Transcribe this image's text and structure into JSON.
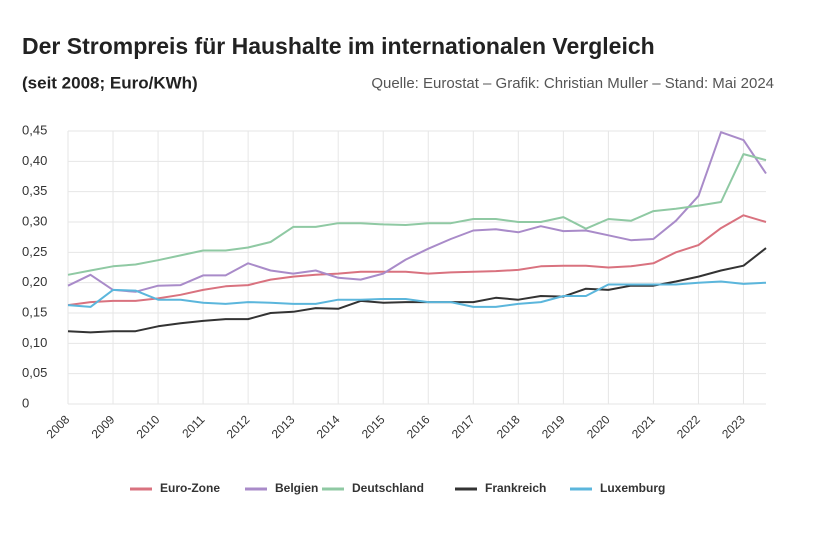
{
  "chart_data": {
    "type": "line",
    "title": "Der Strompreis für Haushalte im internationalen Vergleich",
    "subtitle": "(seit 2008; Euro/KWh)",
    "source": "Quelle: Eurostat – Grafik: Christian Muller – Stand: Mai 2024",
    "x": [
      2008,
      2008.5,
      2009,
      2009.5,
      2010,
      2010.5,
      2011,
      2011.5,
      2012,
      2012.5,
      2013,
      2013.5,
      2014,
      2014.5,
      2015,
      2015.5,
      2016,
      2016.5,
      2017,
      2017.5,
      2018,
      2018.5,
      2019,
      2019.5,
      2020,
      2020.5,
      2021,
      2021.5,
      2022,
      2022.5,
      2023,
      2023.5
    ],
    "xlim": [
      2008,
      2023.5
    ],
    "xticks": [
      2008,
      2009,
      2010,
      2011,
      2012,
      2013,
      2014,
      2015,
      2016,
      2017,
      2018,
      2019,
      2020,
      2021,
      2022,
      2023
    ],
    "ylim": [
      0,
      0.45
    ],
    "yticks": [
      0,
      {
        "value": 0.05,
        "label": "0,05"
      },
      {
        "value": 0.1,
        "label": "0,10"
      },
      {
        "value": 0.15,
        "label": "0,15"
      },
      {
        "value": 0.2,
        "label": "0,20"
      },
      {
        "value": 0.25,
        "label": "0,25"
      },
      {
        "value": 0.3,
        "label": "0,30"
      },
      {
        "value": 0.35,
        "label": "0,35"
      },
      {
        "value": 0.4,
        "label": "0,40"
      },
      {
        "value": 0.45,
        "label": "0,45"
      }
    ],
    "grid": true,
    "legend": "bottom",
    "series": [
      {
        "name": "Euro-Zone",
        "color": "#d9727f",
        "values": [
          0.163,
          0.168,
          0.17,
          0.17,
          0.174,
          0.18,
          0.188,
          0.194,
          0.196,
          0.205,
          0.21,
          0.213,
          0.215,
          0.218,
          0.218,
          0.218,
          0.215,
          0.217,
          0.218,
          0.219,
          0.221,
          0.227,
          0.228,
          0.228,
          0.225,
          0.227,
          0.232,
          0.25,
          0.262,
          0.29,
          0.311,
          0.3
        ]
      },
      {
        "name": "Belgien",
        "color": "#a98bc9",
        "values": [
          0.195,
          0.213,
          0.188,
          0.185,
          0.195,
          0.196,
          0.212,
          0.212,
          0.232,
          0.22,
          0.215,
          0.22,
          0.208,
          0.205,
          0.215,
          0.238,
          0.256,
          0.272,
          0.286,
          0.288,
          0.283,
          0.293,
          0.285,
          0.286,
          0.278,
          0.27,
          0.272,
          0.302,
          0.343,
          0.448,
          0.435,
          0.38
        ]
      },
      {
        "name": "Deutschland",
        "color": "#8fc9a3",
        "values": [
          0.213,
          0.22,
          0.227,
          0.23,
          0.237,
          0.245,
          0.253,
          0.253,
          0.258,
          0.267,
          0.292,
          0.292,
          0.298,
          0.298,
          0.296,
          0.295,
          0.298,
          0.298,
          0.305,
          0.305,
          0.3,
          0.3,
          0.308,
          0.289,
          0.305,
          0.302,
          0.318,
          0.322,
          0.327,
          0.333,
          0.412,
          0.402
        ]
      },
      {
        "name": "Frankreich",
        "color": "#333333",
        "values": [
          0.12,
          0.118,
          0.12,
          0.12,
          0.128,
          0.133,
          0.137,
          0.14,
          0.14,
          0.15,
          0.152,
          0.158,
          0.157,
          0.17,
          0.167,
          0.168,
          0.168,
          0.168,
          0.168,
          0.175,
          0.172,
          0.178,
          0.177,
          0.19,
          0.188,
          0.195,
          0.195,
          0.202,
          0.21,
          0.22,
          0.228,
          0.257
        ]
      },
      {
        "name": "Luxemburg",
        "color": "#5bb6dc",
        "values": [
          0.163,
          0.16,
          0.188,
          0.187,
          0.172,
          0.172,
          0.167,
          0.165,
          0.168,
          0.167,
          0.165,
          0.165,
          0.172,
          0.172,
          0.173,
          0.173,
          0.168,
          0.168,
          0.16,
          0.16,
          0.165,
          0.168,
          0.178,
          0.178,
          0.197,
          0.197,
          0.197,
          0.197,
          0.2,
          0.202,
          0.198,
          0.2
        ]
      }
    ]
  }
}
